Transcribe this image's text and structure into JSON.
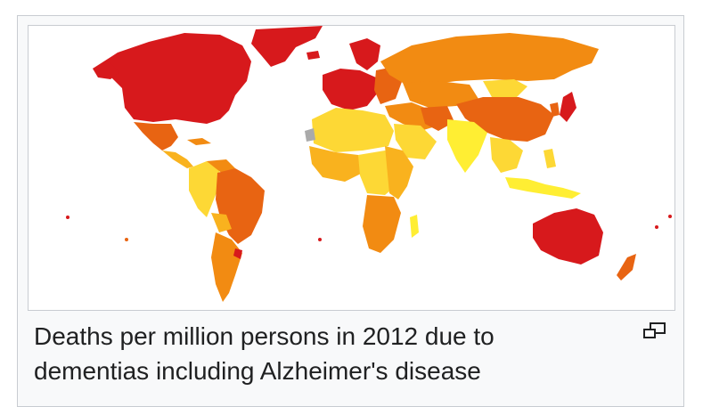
{
  "figure": {
    "caption": "Deaths per million persons in 2012 due to dementias including Alzheimer's disease",
    "magnify_icon": "enlarge-icon"
  },
  "colors": {
    "very_high": "#d7191c",
    "high": "#e86412",
    "medium_high": "#f28b12",
    "medium": "#f9b21e",
    "low": "#fdd835",
    "very_low": "#ffee33",
    "no_data": "#aaaaaa",
    "frame_border": "#c8ccd1",
    "caption_bg": "#f8f9fa"
  }
}
